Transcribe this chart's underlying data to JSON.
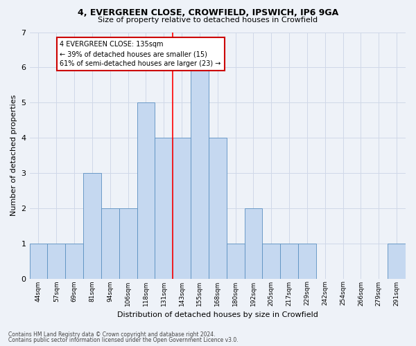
{
  "title1": "4, EVERGREEN CLOSE, CROWFIELD, IPSWICH, IP6 9GA",
  "title2": "Size of property relative to detached houses in Crowfield",
  "xlabel": "Distribution of detached houses by size in Crowfield",
  "ylabel": "Number of detached properties",
  "categories": [
    "44sqm",
    "57sqm",
    "69sqm",
    "81sqm",
    "94sqm",
    "106sqm",
    "118sqm",
    "131sqm",
    "143sqm",
    "155sqm",
    "168sqm",
    "180sqm",
    "192sqm",
    "205sqm",
    "217sqm",
    "229sqm",
    "242sqm",
    "254sqm",
    "266sqm",
    "279sqm",
    "291sqm"
  ],
  "values": [
    1,
    1,
    1,
    3,
    2,
    2,
    5,
    4,
    4,
    6,
    4,
    1,
    2,
    1,
    1,
    1,
    0,
    0,
    0,
    0,
    1
  ],
  "bar_color": "#c5d8f0",
  "bar_edge_color": "#5a8fc0",
  "bar_linewidth": 0.6,
  "grid_color": "#d0d8e8",
  "bg_color": "#eef2f8",
  "annotation_text": "4 EVERGREEN CLOSE: 135sqm\n← 39% of detached houses are smaller (15)\n61% of semi-detached houses are larger (23) →",
  "annotation_box_color": "#ffffff",
  "annotation_box_edge": "#cc0000",
  "ylim": [
    0,
    7
  ],
  "yticks": [
    0,
    1,
    2,
    3,
    4,
    5,
    6,
    7
  ],
  "footnote1": "Contains HM Land Registry data © Crown copyright and database right 2024.",
  "footnote2": "Contains public sector information licensed under the Open Government Licence v3.0."
}
